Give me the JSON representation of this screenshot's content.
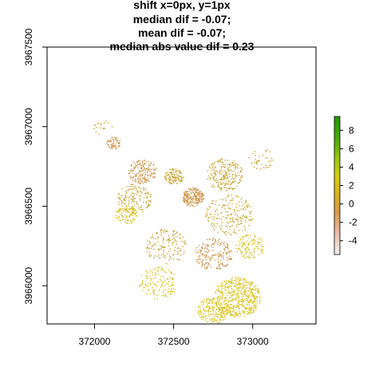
{
  "chart_data": {
    "type": "heatmap",
    "title_lines": [
      "shift x=0px, y=1px",
      "median dif = -0.07;",
      "mean dif = -0.07;",
      "median abs value dif = 0.23"
    ],
    "xlim": [
      371700,
      373400
    ],
    "ylim": [
      3965760,
      3967500
    ],
    "x_ticks": [
      "372000",
      "372500",
      "373000"
    ],
    "y_ticks": [
      "3966000",
      "3966500",
      "3967000",
      "3967500"
    ],
    "grid": false,
    "legend": {
      "placement": "right",
      "type": "colorbar",
      "range": [
        -5.5,
        9.5
      ],
      "ticks": [
        "-4",
        "-2",
        "0",
        "2",
        "4",
        "6",
        "8"
      ],
      "stops": [
        {
          "value": -5.5,
          "color": "#f2f2f2"
        },
        {
          "value": -3,
          "color": "#e8b9a0"
        },
        {
          "value": -1,
          "color": "#d89a4c"
        },
        {
          "value": 1,
          "color": "#d8b21c"
        },
        {
          "value": 3,
          "color": "#d6cc10"
        },
        {
          "value": 5,
          "color": "#9ac80a"
        },
        {
          "value": 7,
          "color": "#4caa08"
        },
        {
          "value": 9.5,
          "color": "#1e9a05"
        }
      ]
    },
    "colors": {
      "negative": "#d19b55",
      "near_zero": "#c9a93a",
      "positive": "#d9c52a"
    }
  }
}
